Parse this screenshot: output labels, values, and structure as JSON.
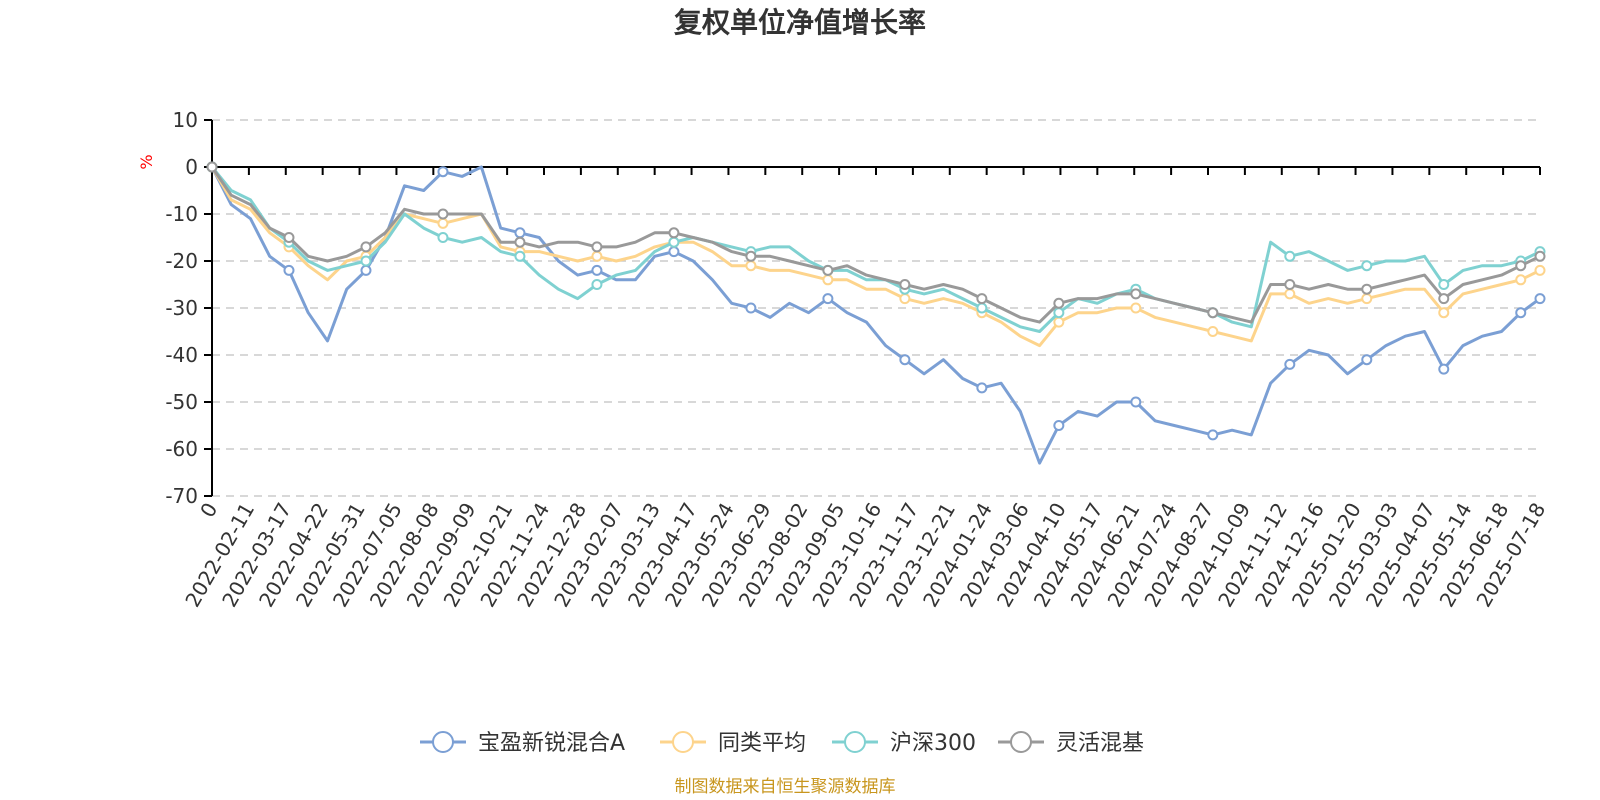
{
  "chart_data": {
    "type": "line",
    "title": "复权单位净值增长率",
    "ylabel": "%",
    "xlabel": "",
    "ylim": [
      -70,
      10
    ],
    "yticks": [
      10,
      0,
      -10,
      -20,
      -30,
      -40,
      -50,
      -60,
      -70
    ],
    "grid": true,
    "legend_position": "bottom",
    "source_note": "制图数据来自恒生聚源数据库",
    "x_tick_labels": [
      "0",
      "2022-02-11",
      "2022-03-17",
      "2022-04-22",
      "2022-05-31",
      "2022-07-05",
      "2022-08-08",
      "2022-09-09",
      "2022-10-21",
      "2022-11-24",
      "2022-12-28",
      "2023-02-07",
      "2023-03-13",
      "2023-04-17",
      "2023-05-24",
      "2023-06-29",
      "2023-08-02",
      "2023-09-05",
      "2023-10-16",
      "2023-11-17",
      "2023-12-21",
      "2024-01-24",
      "2024-03-06",
      "2024-04-10",
      "2024-05-17",
      "2024-06-21",
      "2024-07-24",
      "2024-08-27",
      "2024-10-09",
      "2024-11-12",
      "2024-12-16",
      "2025-01-20",
      "2025-03-03",
      "2025-04-07",
      "2025-05-14",
      "2025-06-18",
      "2025-07-18"
    ],
    "series": [
      {
        "name": "宝盈新锐混合A",
        "color": "#7b9fd4",
        "values": [
          0,
          -8,
          -11,
          -19,
          -22,
          -31,
          -37,
          -26,
          -22,
          -15,
          -4,
          -5,
          -1,
          -2,
          0,
          -13,
          -14,
          -15,
          -20,
          -23,
          -22,
          -24,
          -24,
          -19,
          -18,
          -20,
          -24,
          -29,
          -30,
          -32,
          -29,
          -31,
          -28,
          -31,
          -33,
          -38,
          -41,
          -44,
          -41,
          -45,
          -47,
          -46,
          -52,
          -63,
          -55,
          -52,
          -53,
          -50,
          -50,
          -54,
          -55,
          -56,
          -57,
          -56,
          -57,
          -46,
          -42,
          -39,
          -40,
          -44,
          -41,
          -38,
          -36,
          -35,
          -43,
          -38,
          -36,
          -35,
          -31,
          -28
        ]
      },
      {
        "name": "同类平均",
        "color": "#fdd48c",
        "values": [
          0,
          -7,
          -9,
          -14,
          -17,
          -21,
          -24,
          -20,
          -19,
          -15,
          -10,
          -11,
          -12,
          -11,
          -10,
          -17,
          -18,
          -18,
          -19,
          -20,
          -19,
          -20,
          -19,
          -17,
          -16,
          -16,
          -18,
          -21,
          -21,
          -22,
          -22,
          -23,
          -24,
          -24,
          -26,
          -26,
          -28,
          -29,
          -28,
          -29,
          -31,
          -33,
          -36,
          -38,
          -33,
          -31,
          -31,
          -30,
          -30,
          -32,
          -33,
          -34,
          -35,
          -36,
          -37,
          -27,
          -27,
          -29,
          -28,
          -29,
          -28,
          -27,
          -26,
          -26,
          -31,
          -27,
          -26,
          -25,
          -24,
          -22
        ]
      },
      {
        "name": "沪深300",
        "color": "#7fd1d1",
        "values": [
          0,
          -5,
          -7,
          -13,
          -16,
          -20,
          -22,
          -21,
          -20,
          -16,
          -10,
          -13,
          -15,
          -16,
          -15,
          -18,
          -19,
          -23,
          -26,
          -28,
          -25,
          -23,
          -22,
          -18,
          -16,
          -15,
          -16,
          -17,
          -18,
          -17,
          -17,
          -20,
          -22,
          -22,
          -24,
          -24,
          -26,
          -27,
          -26,
          -28,
          -30,
          -32,
          -34,
          -35,
          -31,
          -28,
          -29,
          -27,
          -26,
          -28,
          -29,
          -30,
          -31,
          -33,
          -34,
          -16,
          -19,
          -18,
          -20,
          -22,
          -21,
          -20,
          -20,
          -19,
          -25,
          -22,
          -21,
          -21,
          -20,
          -18
        ]
      },
      {
        "name": "灵活混基",
        "color": "#999999",
        "values": [
          0,
          -6,
          -8,
          -13,
          -15,
          -19,
          -20,
          -19,
          -17,
          -14,
          -9,
          -10,
          -10,
          -10,
          -10,
          -16,
          -16,
          -17,
          -16,
          -16,
          -17,
          -17,
          -16,
          -14,
          -14,
          -15,
          -16,
          -18,
          -19,
          -19,
          -20,
          -21,
          -22,
          -21,
          -23,
          -24,
          -25,
          -26,
          -25,
          -26,
          -28,
          -30,
          -32,
          -33,
          -29,
          -28,
          -28,
          -27,
          -27,
          -28,
          -29,
          -30,
          -31,
          -32,
          -33,
          -25,
          -25,
          -26,
          -25,
          -26,
          -26,
          -25,
          -24,
          -23,
          -28,
          -25,
          -24,
          -23,
          -21,
          -19
        ]
      }
    ]
  }
}
